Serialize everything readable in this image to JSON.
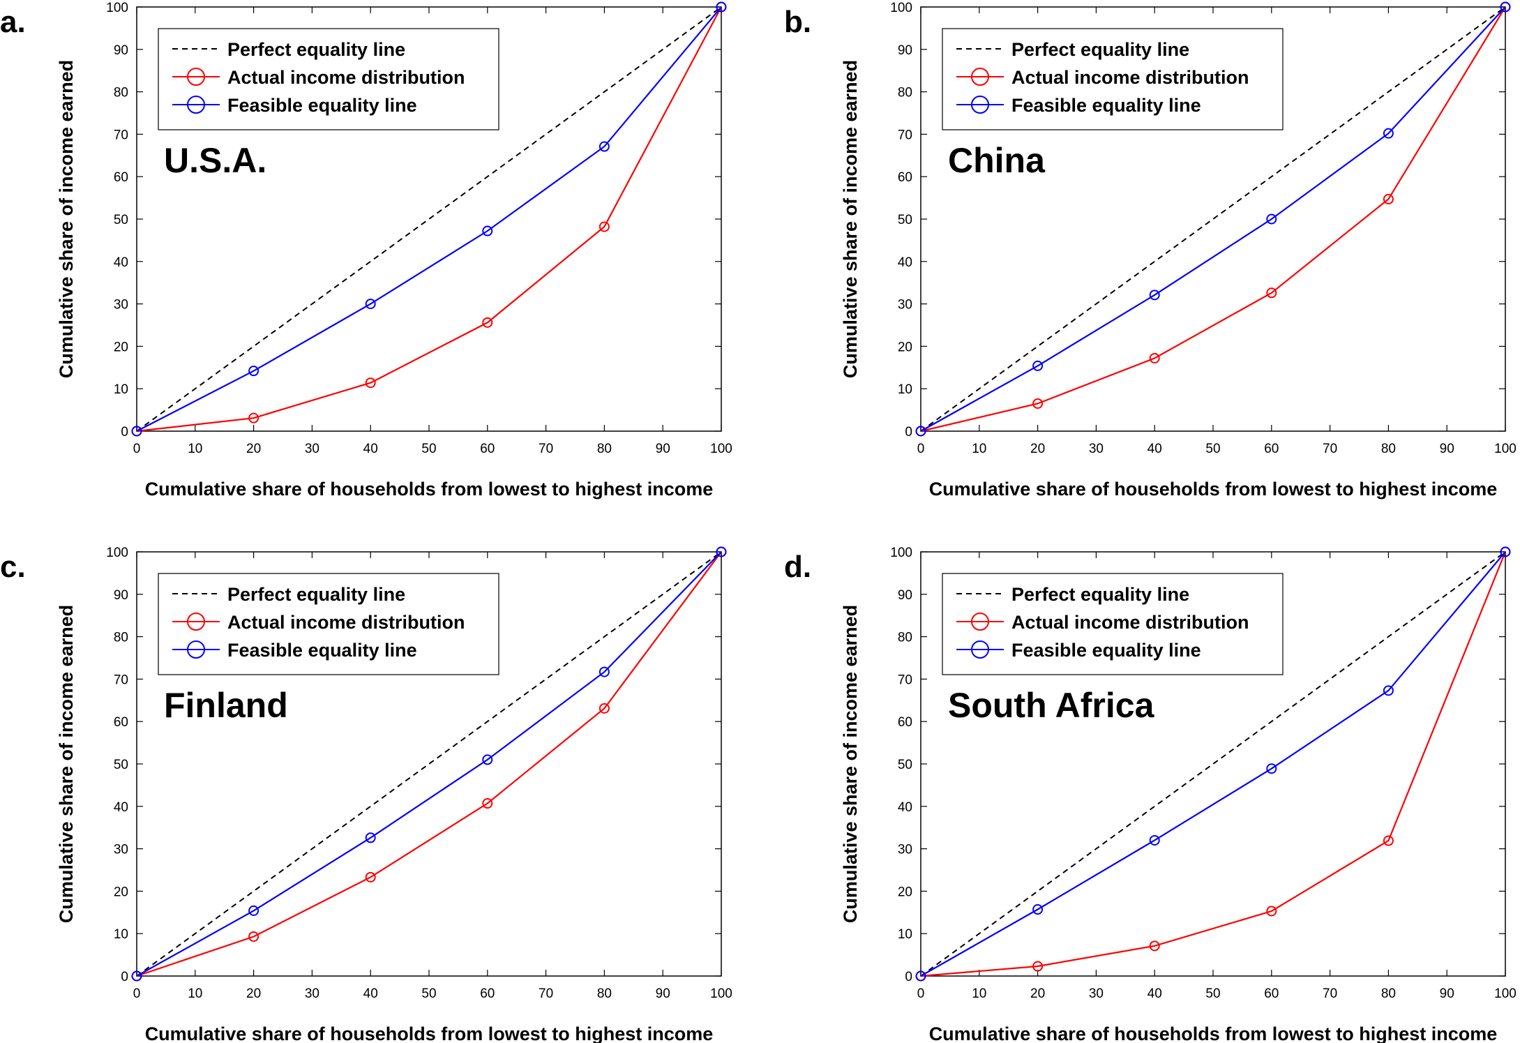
{
  "figure": {
    "colors": {
      "perfect": "#000000",
      "actual": "#ff0000",
      "feasible": "#0000ff"
    },
    "legend": {
      "perfect": "Perfect equality line",
      "actual": "Actual income distribution",
      "feasible": "Feasible equality line"
    }
  },
  "chart_data": [
    {
      "type": "line",
      "panel": "a.",
      "title": "U.S.A.",
      "xlabel": "Cumulative share of households from lowest to highest income",
      "ylabel": "Cumulative share of income earned",
      "xlim": [
        0,
        100
      ],
      "ylim": [
        0,
        100
      ],
      "xticks": [
        0,
        10,
        20,
        30,
        40,
        50,
        60,
        70,
        80,
        90,
        100
      ],
      "yticks": [
        0,
        10,
        20,
        30,
        40,
        50,
        60,
        70,
        80,
        90,
        100
      ],
      "legend_position": "top-left",
      "x": [
        0,
        20,
        40,
        60,
        80,
        100
      ],
      "series": [
        {
          "name": "Perfect equality line",
          "values": [
            0,
            20,
            40,
            60,
            80,
            100
          ]
        },
        {
          "name": "Actual income distribution",
          "values": [
            0,
            3.1,
            11.4,
            25.6,
            48.2,
            100
          ]
        },
        {
          "name": "Feasible equality line",
          "values": [
            0,
            14.2,
            30,
            47.2,
            67.1,
            100
          ]
        }
      ]
    },
    {
      "type": "line",
      "panel": "b.",
      "title": "China",
      "xlabel": "Cumulative share of households from lowest to highest income",
      "ylabel": "Cumulative share of income earned",
      "xlim": [
        0,
        100
      ],
      "ylim": [
        0,
        100
      ],
      "xticks": [
        0,
        10,
        20,
        30,
        40,
        50,
        60,
        70,
        80,
        90,
        100
      ],
      "yticks": [
        0,
        10,
        20,
        30,
        40,
        50,
        60,
        70,
        80,
        90,
        100
      ],
      "legend_position": "top-left",
      "x": [
        0,
        20,
        40,
        60,
        80,
        100
      ],
      "series": [
        {
          "name": "Perfect equality line",
          "values": [
            0,
            20,
            40,
            60,
            80,
            100
          ]
        },
        {
          "name": "Actual income distribution",
          "values": [
            0,
            6.5,
            17.2,
            32.6,
            54.7,
            100
          ]
        },
        {
          "name": "Feasible equality line",
          "values": [
            0,
            15.4,
            32.1,
            50,
            70.2,
            100
          ]
        }
      ]
    },
    {
      "type": "line",
      "panel": "c.",
      "title": "Finland",
      "xlabel": "Cumulative share of households from lowest to highest income",
      "ylabel": "Cumulative share of income earned",
      "xlim": [
        0,
        100
      ],
      "ylim": [
        0,
        100
      ],
      "xticks": [
        0,
        10,
        20,
        30,
        40,
        50,
        60,
        70,
        80,
        90,
        100
      ],
      "yticks": [
        0,
        10,
        20,
        30,
        40,
        50,
        60,
        70,
        80,
        90,
        100
      ],
      "legend_position": "top-left",
      "x": [
        0,
        20,
        40,
        60,
        80,
        100
      ],
      "series": [
        {
          "name": "Perfect equality line",
          "values": [
            0,
            20,
            40,
            60,
            80,
            100
          ]
        },
        {
          "name": "Actual income distribution",
          "values": [
            0,
            9.3,
            23.3,
            40.7,
            63.1,
            100
          ]
        },
        {
          "name": "Feasible equality line",
          "values": [
            0,
            15.4,
            32.6,
            51,
            71.7,
            100
          ]
        }
      ]
    },
    {
      "type": "line",
      "panel": "d.",
      "title": "South Africa",
      "xlabel": "Cumulative share of households from lowest to highest income",
      "ylabel": "Cumulative share of income earned",
      "xlim": [
        0,
        100
      ],
      "ylim": [
        0,
        100
      ],
      "xticks": [
        0,
        10,
        20,
        30,
        40,
        50,
        60,
        70,
        80,
        90,
        100
      ],
      "yticks": [
        0,
        10,
        20,
        30,
        40,
        50,
        60,
        70,
        80,
        90,
        100
      ],
      "legend_position": "top-left",
      "x": [
        0,
        20,
        40,
        60,
        80,
        100
      ],
      "series": [
        {
          "name": "Perfect equality line",
          "values": [
            0,
            20,
            40,
            60,
            80,
            100
          ]
        },
        {
          "name": "Actual income distribution",
          "values": [
            0,
            2.3,
            7.1,
            15.3,
            31.9,
            100
          ]
        },
        {
          "name": "Feasible equality line",
          "values": [
            0,
            15.7,
            32,
            48.9,
            67.3,
            100
          ]
        }
      ]
    }
  ]
}
